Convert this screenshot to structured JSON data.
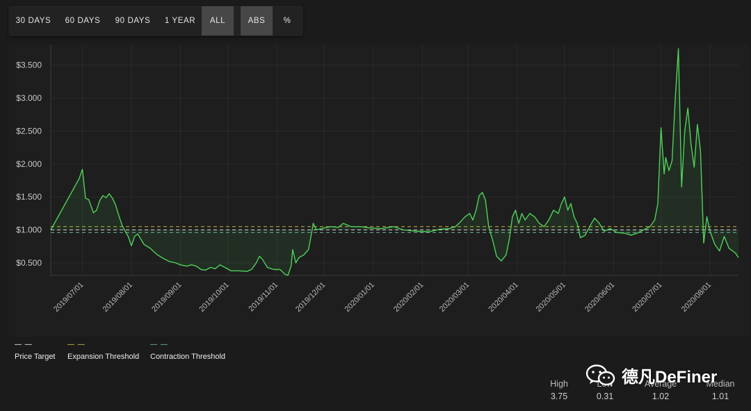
{
  "range_buttons": [
    {
      "label": "30 DAYS",
      "active": false
    },
    {
      "label": "60 DAYS",
      "active": false
    },
    {
      "label": "90 DAYS",
      "active": false
    },
    {
      "label": "1 YEAR",
      "active": false
    },
    {
      "label": "ALL",
      "active": true
    }
  ],
  "mode_buttons": [
    {
      "label": "ABS",
      "active": true
    },
    {
      "label": "%",
      "active": false
    }
  ],
  "chart_data": {
    "type": "line",
    "title": "",
    "xlabel": "",
    "ylabel": "",
    "ylim": [
      0.31,
      3.75
    ],
    "y_ticks": [
      {
        "value": 3.5,
        "label": "$3.500"
      },
      {
        "value": 3.0,
        "label": "$3.000"
      },
      {
        "value": 2.5,
        "label": "$2.500"
      },
      {
        "value": 2.0,
        "label": "$2.000"
      },
      {
        "value": 1.5,
        "label": "$1.500"
      },
      {
        "value": 1.0,
        "label": "$1.000"
      },
      {
        "value": 0.5,
        "label": "$0.500"
      }
    ],
    "x_range": [
      "2019-06-11",
      "2020-08-19"
    ],
    "x_ticks": [
      "2019/07/01",
      "2019/08/01",
      "2019/09/01",
      "2019/10/01",
      "2019/11/01",
      "2019/12/01",
      "2020/01/01",
      "2020/02/01",
      "2020/03/01",
      "2020/04/01",
      "2020/05/01",
      "2020/06/01",
      "2020/07/01",
      "2020/08/01"
    ],
    "grid": true,
    "line_color": "#4fd15a",
    "thresholds": [
      {
        "name": "Price Target",
        "value": 1.0,
        "color": "#ffffff"
      },
      {
        "name": "Expansion Threshold",
        "value": 1.05,
        "color": "#e6d64a"
      },
      {
        "name": "Contraction Threshold",
        "value": 0.96,
        "color": "#7fc9c1"
      }
    ],
    "series": [
      {
        "name": "",
        "points": [
          [
            "2019-06-11",
            1.0
          ],
          [
            "2019-06-29",
            1.78
          ],
          [
            "2019-07-01",
            1.92
          ],
          [
            "2019-07-03",
            1.48
          ],
          [
            "2019-07-05",
            1.46
          ],
          [
            "2019-07-08",
            1.26
          ],
          [
            "2019-07-10",
            1.3
          ],
          [
            "2019-07-12",
            1.45
          ],
          [
            "2019-07-14",
            1.52
          ],
          [
            "2019-07-16",
            1.49
          ],
          [
            "2019-07-18",
            1.55
          ],
          [
            "2019-07-20",
            1.48
          ],
          [
            "2019-07-22",
            1.38
          ],
          [
            "2019-07-24",
            1.22
          ],
          [
            "2019-07-26",
            1.08
          ],
          [
            "2019-07-28",
            0.98
          ],
          [
            "2019-07-30",
            0.9
          ],
          [
            "2019-08-01",
            0.76
          ],
          [
            "2019-08-03",
            0.9
          ],
          [
            "2019-08-05",
            0.94
          ],
          [
            "2019-08-07",
            0.86
          ],
          [
            "2019-08-09",
            0.78
          ],
          [
            "2019-08-13",
            0.72
          ],
          [
            "2019-08-17",
            0.63
          ],
          [
            "2019-08-21",
            0.57
          ],
          [
            "2019-08-25",
            0.52
          ],
          [
            "2019-08-29",
            0.5
          ],
          [
            "2019-09-01",
            0.47
          ],
          [
            "2019-09-05",
            0.45
          ],
          [
            "2019-09-08",
            0.47
          ],
          [
            "2019-09-11",
            0.45
          ],
          [
            "2019-09-14",
            0.4
          ],
          [
            "2019-09-17",
            0.39
          ],
          [
            "2019-09-20",
            0.43
          ],
          [
            "2019-09-23",
            0.41
          ],
          [
            "2019-09-26",
            0.47
          ],
          [
            "2019-09-30",
            0.42
          ],
          [
            "2019-10-03",
            0.38
          ],
          [
            "2019-10-08",
            0.38
          ],
          [
            "2019-10-13",
            0.37
          ],
          [
            "2019-10-16",
            0.4
          ],
          [
            "2019-10-19",
            0.5
          ],
          [
            "2019-10-21",
            0.6
          ],
          [
            "2019-10-23",
            0.55
          ],
          [
            "2019-10-26",
            0.43
          ],
          [
            "2019-10-30",
            0.4
          ],
          [
            "2019-11-03",
            0.4
          ],
          [
            "2019-11-06",
            0.33
          ],
          [
            "2019-11-08",
            0.31
          ],
          [
            "2019-11-10",
            0.45
          ],
          [
            "2019-11-11",
            0.7
          ],
          [
            "2019-11-13",
            0.5
          ],
          [
            "2019-11-15",
            0.58
          ],
          [
            "2019-11-18",
            0.62
          ],
          [
            "2019-11-21",
            0.7
          ],
          [
            "2019-11-23",
            0.95
          ],
          [
            "2019-11-24",
            1.1
          ],
          [
            "2019-11-26",
            1.0
          ],
          [
            "2019-11-29",
            1.02
          ],
          [
            "2019-12-05",
            1.05
          ],
          [
            "2019-12-10",
            1.04
          ],
          [
            "2019-12-13",
            1.1
          ],
          [
            "2019-12-18",
            1.05
          ],
          [
            "2019-12-24",
            1.05
          ],
          [
            "2019-12-30",
            1.03
          ],
          [
            "2020-01-06",
            1.02
          ],
          [
            "2020-01-14",
            1.05
          ],
          [
            "2020-01-20",
            1.0
          ],
          [
            "2020-01-28",
            0.98
          ],
          [
            "2020-02-05",
            0.97
          ],
          [
            "2020-02-12",
            1.01
          ],
          [
            "2020-02-18",
            1.02
          ],
          [
            "2020-02-22",
            1.05
          ],
          [
            "2020-02-25",
            1.12
          ],
          [
            "2020-02-28",
            1.2
          ],
          [
            "2020-03-02",
            1.25
          ],
          [
            "2020-03-04",
            1.15
          ],
          [
            "2020-03-06",
            1.3
          ],
          [
            "2020-03-08",
            1.52
          ],
          [
            "2020-03-10",
            1.57
          ],
          [
            "2020-03-12",
            1.45
          ],
          [
            "2020-03-14",
            1.05
          ],
          [
            "2020-03-17",
            0.8
          ],
          [
            "2020-03-19",
            0.6
          ],
          [
            "2020-03-22",
            0.53
          ],
          [
            "2020-03-25",
            0.62
          ],
          [
            "2020-03-27",
            0.85
          ],
          [
            "2020-03-29",
            1.2
          ],
          [
            "2020-03-31",
            1.3
          ],
          [
            "2020-04-02",
            1.1
          ],
          [
            "2020-04-04",
            1.25
          ],
          [
            "2020-04-06",
            1.15
          ],
          [
            "2020-04-09",
            1.25
          ],
          [
            "2020-04-12",
            1.2
          ],
          [
            "2020-04-15",
            1.1
          ],
          [
            "2020-04-18",
            1.05
          ],
          [
            "2020-04-21",
            1.15
          ],
          [
            "2020-04-24",
            1.3
          ],
          [
            "2020-04-27",
            1.25
          ],
          [
            "2020-04-29",
            1.4
          ],
          [
            "2020-05-01",
            1.5
          ],
          [
            "2020-05-03",
            1.3
          ],
          [
            "2020-05-05",
            1.4
          ],
          [
            "2020-05-07",
            1.2
          ],
          [
            "2020-05-09",
            1.1
          ],
          [
            "2020-05-11",
            0.88
          ],
          [
            "2020-05-14",
            0.92
          ],
          [
            "2020-05-18",
            1.1
          ],
          [
            "2020-05-20",
            1.18
          ],
          [
            "2020-05-23",
            1.1
          ],
          [
            "2020-05-26",
            0.98
          ],
          [
            "2020-05-30",
            1.02
          ],
          [
            "2020-06-03",
            0.96
          ],
          [
            "2020-06-08",
            0.95
          ],
          [
            "2020-06-12",
            0.92
          ],
          [
            "2020-06-16",
            0.95
          ],
          [
            "2020-06-20",
            1.0
          ],
          [
            "2020-06-24",
            1.05
          ],
          [
            "2020-06-27",
            1.15
          ],
          [
            "2020-06-29",
            1.4
          ],
          [
            "2020-07-01",
            2.55
          ],
          [
            "2020-07-03",
            1.85
          ],
          [
            "2020-07-04",
            2.1
          ],
          [
            "2020-07-06",
            1.9
          ],
          [
            "2020-07-08",
            2.05
          ],
          [
            "2020-07-10",
            3.0
          ],
          [
            "2020-07-12",
            3.75
          ],
          [
            "2020-07-14",
            1.65
          ],
          [
            "2020-07-16",
            2.5
          ],
          [
            "2020-07-18",
            2.85
          ],
          [
            "2020-07-20",
            2.3
          ],
          [
            "2020-07-22",
            1.95
          ],
          [
            "2020-07-24",
            2.6
          ],
          [
            "2020-07-26",
            2.2
          ],
          [
            "2020-07-28",
            0.8
          ],
          [
            "2020-07-30",
            1.2
          ],
          [
            "2020-08-01",
            0.98
          ],
          [
            "2020-08-04",
            0.78
          ],
          [
            "2020-08-07",
            0.68
          ],
          [
            "2020-08-10",
            0.9
          ],
          [
            "2020-08-13",
            0.72
          ],
          [
            "2020-08-17",
            0.65
          ],
          [
            "2020-08-19",
            0.58
          ]
        ]
      }
    ]
  },
  "legend": [
    {
      "label": "Price Target",
      "color": "#ffffff"
    },
    {
      "label": "Expansion Threshold",
      "color": "#e6d64a"
    },
    {
      "label": "Contraction Threshold",
      "color": "#7fc9c1"
    }
  ],
  "stats": [
    {
      "label": "High",
      "value": "3.75"
    },
    {
      "label": "Low",
      "value": "0.31"
    },
    {
      "label": "Average",
      "value": "1.02"
    },
    {
      "label": "Median",
      "value": "1.01"
    }
  ],
  "watermark": {
    "text": "德凡DeFiner",
    "icon": "wechat-icon"
  }
}
